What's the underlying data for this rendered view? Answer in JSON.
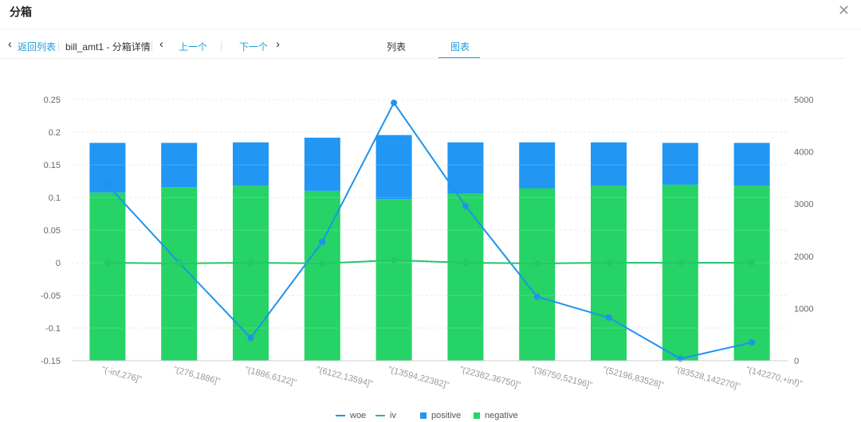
{
  "header": {
    "title": "分箱",
    "close_icon": "close-icon"
  },
  "toolbar": {
    "back_label": "返回列表",
    "detail_label": "bill_amt1 - 分箱详情",
    "prev_label": "上一个",
    "next_label": "下一个",
    "tabs": [
      {
        "label": "列表"
      },
      {
        "label": "图表"
      }
    ],
    "active_tab": "图表"
  },
  "colors": {
    "woe": "#1f93ea",
    "iv": "#23c865",
    "positive": "#2196f3",
    "negative": "#25d366",
    "accent": "#1c9ed8"
  },
  "chart_data": {
    "type": "bar",
    "categories": [
      "\"(-inf,276]\"",
      "\"(276,1886]\"",
      "\"(1886,6122]\"",
      "\"(6122,13594]\"",
      "\"(13594,22382]\"",
      "\"(22382,36750]\"",
      "\"(36750,52196]\"",
      "\"(52196,83528]\"",
      "\"(83528,142270]\"",
      "\"(142270,+inf)\""
    ],
    "series": [
      {
        "name": "woe",
        "type": "line",
        "axis": "left",
        "values": [
          0.119,
          0.0,
          -0.115,
          0.032,
          0.245,
          0.087,
          -0.052,
          -0.084,
          -0.147,
          -0.122
        ]
      },
      {
        "name": "iv",
        "type": "line",
        "axis": "left",
        "values": [
          0.0,
          -0.001,
          0.0,
          -0.001,
          0.004,
          0.0,
          -0.001,
          0.0,
          0.0,
          0.0
        ]
      },
      {
        "name": "positive",
        "type": "bar",
        "axis": "right",
        "stack": "s",
        "values": [
          950,
          850,
          830,
          1020,
          1230,
          980,
          880,
          830,
          800,
          820
        ]
      },
      {
        "name": "negative",
        "type": "bar",
        "axis": "right",
        "stack": "s",
        "values": [
          3220,
          3320,
          3350,
          3250,
          3090,
          3200,
          3300,
          3350,
          3370,
          3350
        ]
      }
    ],
    "left_ticks": [
      "0.25",
      "0.2",
      "0.15",
      "0.1",
      "0.05",
      "0",
      "-0.05",
      "-0.1",
      "-0.15"
    ],
    "right_ticks": [
      "5000",
      "4000",
      "3000",
      "2000",
      "1000",
      "0"
    ],
    "ylim_left": [
      -0.15,
      0.25
    ],
    "ylim_right": [
      0,
      5000
    ],
    "grid": true,
    "legend_position": "bottom"
  }
}
